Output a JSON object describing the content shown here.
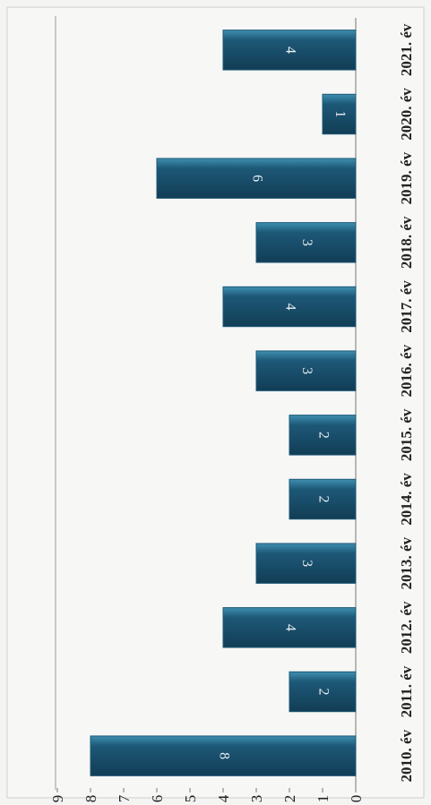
{
  "chart_data": {
    "type": "bar",
    "orientation": "rotated",
    "categories": [
      "2010. év",
      "2011. év",
      "2012. év",
      "2013. év",
      "2014. év",
      "2015. év",
      "2016. év",
      "2017. év",
      "2018. év",
      "2019. év",
      "2020. év",
      "2021. év"
    ],
    "values": [
      8,
      2,
      4,
      3,
      2,
      2,
      3,
      4,
      3,
      6,
      1,
      4
    ],
    "color": "#1d5877",
    "ylim": [
      0,
      9
    ],
    "yticks": [
      0,
      1,
      2,
      3,
      4,
      5,
      6,
      7,
      8,
      9
    ],
    "grid": false
  }
}
